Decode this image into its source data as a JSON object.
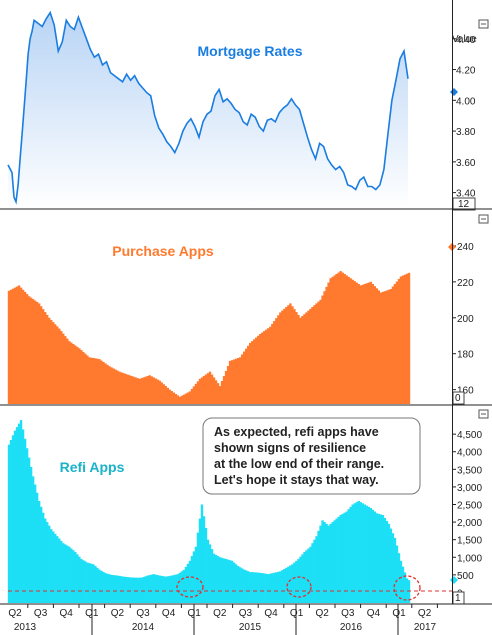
{
  "chart_data": [
    {
      "type": "area",
      "title": "Mortgage Rates",
      "value_label": "Value",
      "current_badge": "12",
      "ylim": [
        3.3,
        4.6
      ],
      "yticks": [
        "3.40",
        "3.60",
        "3.80",
        "4.00",
        "4.20",
        "4.40"
      ],
      "color": "#1a7de0",
      "x": [
        0,
        2,
        3,
        4,
        5,
        6,
        7,
        8,
        9,
        10,
        11,
        12,
        13,
        15,
        17,
        19,
        21,
        23,
        25,
        27,
        29,
        31,
        33,
        35,
        37,
        39,
        41,
        43,
        45,
        47,
        49,
        51,
        53,
        55,
        57,
        59,
        61,
        63,
        65,
        67,
        69,
        71,
        73,
        75,
        77,
        79,
        81,
        83,
        85,
        87,
        89,
        91,
        93,
        95,
        97,
        99,
        101,
        103,
        105,
        107,
        109,
        111,
        113,
        115,
        117,
        119,
        121,
        123,
        125,
        127,
        129,
        131,
        133,
        135,
        137,
        139,
        141,
        143,
        145,
        147,
        149,
        151,
        153,
        155,
        157,
        159,
        161,
        163,
        165,
        167,
        169,
        171,
        173,
        175,
        177,
        179,
        181,
        183,
        185,
        187,
        189,
        191,
        193,
        195,
        197,
        199
      ],
      "values": [
        3.58,
        3.53,
        3.37,
        3.34,
        3.45,
        3.62,
        3.78,
        3.95,
        4.12,
        4.3,
        4.4,
        4.45,
        4.52,
        4.5,
        4.48,
        4.53,
        4.57,
        4.49,
        4.32,
        4.38,
        4.52,
        4.48,
        4.46,
        4.54,
        4.47,
        4.4,
        4.33,
        4.28,
        4.3,
        4.23,
        4.25,
        4.18,
        4.16,
        4.14,
        4.12,
        4.17,
        4.13,
        4.16,
        4.11,
        4.08,
        4.05,
        4.03,
        3.9,
        3.82,
        3.78,
        3.73,
        3.7,
        3.66,
        3.72,
        3.8,
        3.85,
        3.88,
        3.83,
        3.76,
        3.86,
        3.91,
        3.93,
        4.03,
        4.07,
        3.99,
        4.01,
        3.98,
        3.94,
        3.92,
        3.86,
        3.84,
        3.91,
        3.89,
        3.83,
        3.8,
        3.87,
        3.88,
        3.86,
        3.92,
        3.95,
        3.97,
        4.01,
        3.97,
        3.94,
        3.85,
        3.76,
        3.68,
        3.62,
        3.72,
        3.7,
        3.62,
        3.58,
        3.55,
        3.57,
        3.53,
        3.45,
        3.44,
        3.42,
        3.48,
        3.5,
        3.44,
        3.44,
        3.42,
        3.45,
        3.55,
        3.78,
        4.0,
        4.13,
        4.27,
        4.32,
        4.14
      ]
    },
    {
      "type": "bar",
      "title": "Purchase Apps",
      "current_badge": "0",
      "ylim": [
        152,
        260
      ],
      "yticks": [
        "160",
        "180",
        "200",
        "220",
        "240"
      ],
      "color": "#ff7a2e",
      "x": [
        0,
        5,
        10,
        15,
        20,
        25,
        30,
        35,
        40,
        45,
        50,
        55,
        60,
        65,
        70,
        75,
        80,
        85,
        90,
        95,
        100,
        105,
        110,
        115,
        120,
        125,
        130,
        135,
        140,
        145,
        150,
        155,
        160,
        165,
        170,
        175,
        180,
        185,
        190,
        195,
        199
      ],
      "values": [
        215,
        218,
        212,
        208,
        200,
        194,
        187,
        183,
        178,
        177,
        173,
        170,
        168,
        166,
        168,
        165,
        160,
        156,
        159,
        166,
        170,
        162,
        176,
        178,
        186,
        191,
        195,
        203,
        208,
        200,
        205,
        210,
        222,
        226,
        222,
        218,
        220,
        214,
        216,
        223,
        225
      ]
    },
    {
      "type": "bar",
      "title": "Refi Apps",
      "current_badge": "1",
      "ylim": [
        -300,
        5300
      ],
      "yticks": [
        "0",
        "500",
        "1,000",
        "1,500",
        "2,000",
        "2,500",
        "3,000",
        "3,500",
        "4,000",
        "4,500"
      ],
      "color": "#1ddff5",
      "x": [
        0,
        3,
        6,
        9,
        12,
        15,
        18,
        21,
        24,
        27,
        30,
        33,
        36,
        39,
        42,
        45,
        48,
        51,
        54,
        57,
        60,
        63,
        66,
        69,
        72,
        75,
        78,
        81,
        84,
        87,
        90,
        93,
        96,
        99,
        102,
        105,
        108,
        111,
        114,
        117,
        120,
        123,
        126,
        129,
        132,
        135,
        138,
        141,
        144,
        147,
        150,
        153,
        156,
        159,
        162,
        165,
        168,
        171,
        174,
        177,
        180,
        183,
        186,
        189,
        192,
        195,
        198,
        199
      ],
      "values": [
        4200,
        4600,
        4900,
        4100,
        3300,
        2600,
        2100,
        1800,
        1600,
        1400,
        1300,
        1150,
        950,
        850,
        800,
        650,
        550,
        500,
        480,
        450,
        430,
        420,
        420,
        480,
        520,
        480,
        450,
        480,
        520,
        640,
        900,
        1300,
        2500,
        1500,
        1100,
        1000,
        950,
        900,
        750,
        650,
        580,
        570,
        550,
        520,
        560,
        600,
        700,
        800,
        950,
        1150,
        1300,
        1600,
        2050,
        1900,
        2050,
        2200,
        2300,
        2500,
        2600,
        2500,
        2400,
        2250,
        2200,
        1950,
        1550,
        900,
        400,
        350
      ]
    },
    {
      "type": "axis",
      "quarter_labels": [
        "Q2",
        "Q3",
        "Q4",
        "Q1",
        "Q2",
        "Q3",
        "Q4",
        "Q1",
        "Q2",
        "Q3",
        "Q4",
        "Q1",
        "Q2",
        "Q3",
        "Q4",
        "Q1",
        "Q2"
      ],
      "year_labels": [
        "2013",
        "2014",
        "2015",
        "2016",
        "2017"
      ]
    }
  ],
  "annotation": {
    "lines": [
      "As expected, refi apps have",
      "shown signs of resilience",
      "at the low end of their range.",
      "Let's hope it stays that way."
    ]
  },
  "colors": {
    "mortgage": "#1a7de0",
    "purchase": "#ff7a2e",
    "refi": "#1ddff5",
    "highlight": "#e03030"
  },
  "icons": {
    "panel_control": "panel-toggle-icon",
    "last_value": "diamond-marker-icon"
  }
}
